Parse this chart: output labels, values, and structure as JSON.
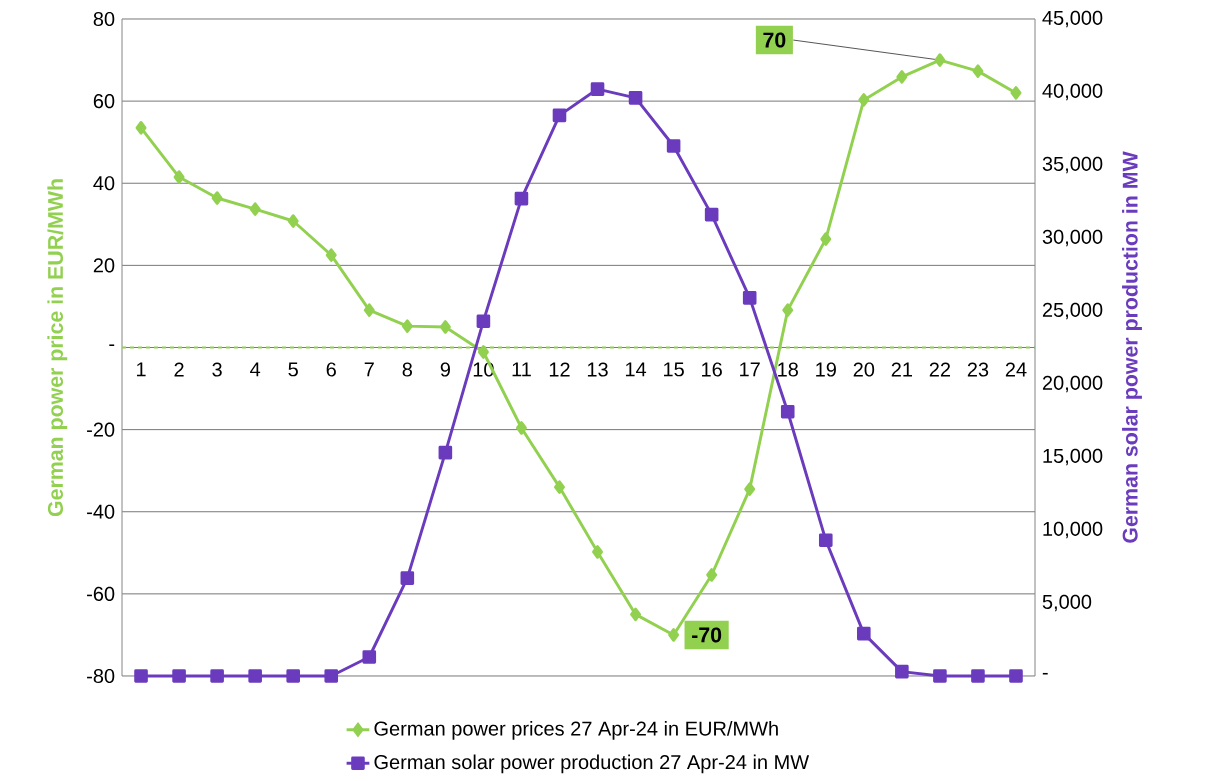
{
  "chart_data": {
    "type": "line",
    "categories": [
      "1",
      "2",
      "3",
      "4",
      "5",
      "6",
      "7",
      "8",
      "9",
      "10",
      "11",
      "12",
      "13",
      "14",
      "15",
      "16",
      "17",
      "18",
      "19",
      "20",
      "21",
      "22",
      "23",
      "24"
    ],
    "ylabel": "German power price in EUR/MWh",
    "y2label": "German solar power production in MW",
    "series": [
      {
        "name": "German power prices 27 Apr-24 in EUR/MWh",
        "color": "#92d050",
        "marker": "diamond",
        "values": [
          53.5,
          41.5,
          36.4,
          33.7,
          30.8,
          22.5,
          9.1,
          5.2,
          5,
          -1.1,
          -19.6,
          -34,
          -49.8,
          -65,
          -70,
          -55.4,
          -34.5,
          9.1,
          26.4,
          60.3,
          65.9,
          70,
          67.3,
          62
        ]
      },
      {
        "name": "German solar power production 27 Apr-24 in MW",
        "color": "#6a3bbd",
        "marker": "square",
        "axis": "y2",
        "values": [
          0,
          0,
          0,
          0,
          0,
          0,
          1300,
          6700,
          15300,
          24300,
          32700,
          38400,
          40200,
          39600,
          36300,
          31600,
          25900,
          18100,
          9300,
          2900,
          300,
          0,
          0,
          0
        ]
      }
    ],
    "ylim": [
      -80,
      80
    ],
    "yticks": [
      -80,
      -60,
      -40,
      -20,
      {
        "value": 0,
        "label": "-"
      },
      20,
      40,
      60,
      80
    ],
    "y2lim": [
      0,
      45000
    ],
    "y2ticks": [
      {
        "value": 0,
        "label": "-"
      },
      {
        "value": 5000,
        "label": "5,000"
      },
      {
        "value": 10000,
        "label": "10,000"
      },
      {
        "value": 15000,
        "label": "15,000"
      },
      {
        "value": 20000,
        "label": "20,000"
      },
      {
        "value": 25000,
        "label": "25,000"
      },
      {
        "value": 30000,
        "label": "30,000"
      },
      {
        "value": 35000,
        "label": "35,000"
      },
      {
        "value": 40000,
        "label": "40,000"
      },
      {
        "value": 45000,
        "label": "45,000"
      }
    ],
    "grid": "y",
    "legend": "bottom",
    "line_style": "solid",
    "ref_lines": [
      {
        "axis": "y",
        "value": 0,
        "color": "#92d050",
        "line_style": "dashed"
      }
    ],
    "annotations": [
      {
        "text": "70",
        "x": "22",
        "y": 70
      },
      {
        "text": "-70",
        "x": "15",
        "y": -70
      }
    ]
  }
}
